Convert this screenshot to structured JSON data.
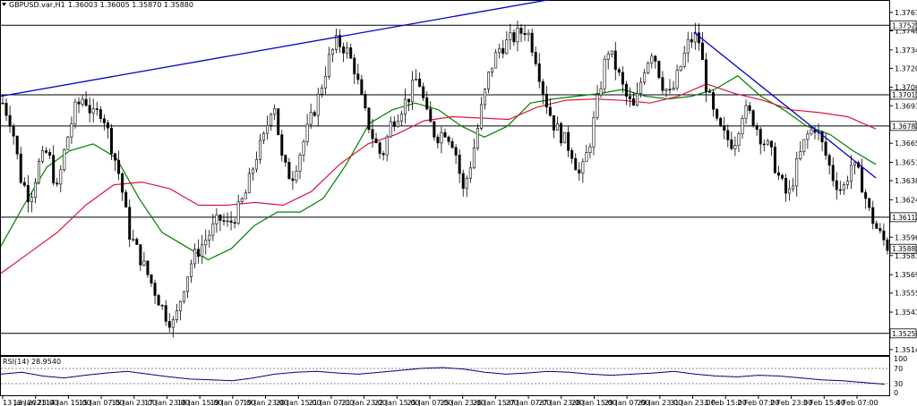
{
  "header": {
    "symbol": "GBPUSD.var,H1",
    "ohlc": "1.36003 1.36005 1.35870 1.35880"
  },
  "rsi": {
    "label": "RSI(14) 28.9540",
    "ticks": [
      "100",
      "70",
      "30",
      "0"
    ]
  },
  "colors": {
    "background": "#ffffff",
    "candle": "#000000",
    "ma_fast": "#008000",
    "ma_slow": "#dc143c",
    "trendline": "#0000cd",
    "level": "#000000",
    "rsi_line": "#000080"
  },
  "chart_data": {
    "type": "line",
    "ylim": [
      1.351,
      1.377
    ],
    "y_ticks": [
      "1.37615",
      "1.37480",
      "1.37340",
      "1.37205",
      "1.37065",
      "1.36930",
      "1.36655",
      "1.36515",
      "1.36380",
      "1.36240",
      "1.35965",
      "1.35830",
      "1.35690",
      "1.35555",
      "1.35415",
      "1.35140"
    ],
    "price_boxes": [
      "1.37521",
      "1.37011",
      "1.36782",
      "1.36112",
      "1.35880",
      "1.35259"
    ],
    "x_ticks": [
      "13 Jan 2021",
      "13 Jan 23:00",
      "14 Jan 15:00",
      "15 Jan 07:00",
      "15 Jan 23:00",
      "17 Jan 23:00",
      "18 Jan 15:00",
      "19 Jan 07:00",
      "19 Jan 23:00",
      "20 Jan 15:00",
      "21 Jan 07:00",
      "21 Jan 23:00",
      "22 Jan 15:00",
      "25 Jan 07:00",
      "25 Jan 23:00",
      "26 Jan 15:00",
      "27 Jan 07:00",
      "27 Jan 23:00",
      "28 Jan 15:00",
      "29 Jan 07:00",
      "29 Jan 23:00",
      "31 Jan 23:00",
      "1 Feb 15:00",
      "2 Feb 07:00",
      "2 Feb 23:00",
      "3 Feb 15:00",
      "4 Feb 07:00"
    ],
    "price_path": [
      1.3695,
      1.368,
      1.364,
      1.3625,
      1.365,
      1.366,
      1.363,
      1.3665,
      1.369,
      1.37,
      1.3685,
      1.369,
      1.3665,
      1.364,
      1.36,
      1.3585,
      1.357,
      1.3555,
      1.354,
      1.3532,
      1.356,
      1.358,
      1.359,
      1.36,
      1.361,
      1.3605,
      1.3615,
      1.363,
      1.3655,
      1.367,
      1.37,
      1.365,
      1.364,
      1.366,
      1.368,
      1.37,
      1.3725,
      1.374,
      1.3735,
      1.372,
      1.369,
      1.367,
      1.3655,
      1.368,
      1.369,
      1.37,
      1.3715,
      1.3685,
      1.367,
      1.3675,
      1.3665,
      1.363,
      1.3655,
      1.369,
      1.372,
      1.3735,
      1.374,
      1.3745,
      1.375,
      1.373,
      1.37,
      1.368,
      1.367,
      1.366,
      1.364,
      1.3665,
      1.37,
      1.3735,
      1.372,
      1.37,
      1.369,
      1.372,
      1.3735,
      1.371,
      1.37,
      1.372,
      1.374,
      1.3745,
      1.3705,
      1.368,
      1.367,
      1.3665,
      1.369,
      1.3685,
      1.367,
      1.366,
      1.364,
      1.3625,
      1.365,
      1.367,
      1.3678,
      1.366,
      1.364,
      1.363,
      1.365,
      1.364,
      1.3615,
      1.36,
      1.359
    ],
    "series": [
      {
        "values": [
          1.359,
          1.362,
          1.3648,
          1.366,
          1.3665,
          1.3655,
          1.3625,
          1.36,
          1.359,
          1.358,
          1.3588,
          1.3605,
          1.3615,
          1.3615,
          1.3625,
          1.365,
          1.368,
          1.369,
          1.3695,
          1.369,
          1.3678,
          1.367,
          1.3678,
          1.3695,
          1.3698,
          1.37,
          1.3702,
          1.3705,
          1.37,
          1.3698,
          1.37,
          1.3705,
          1.3715,
          1.37,
          1.369,
          1.3678,
          1.3672,
          1.366,
          1.365
        ]
      },
      {
        "values": [
          1.357,
          1.3585,
          1.36,
          1.362,
          1.3635,
          1.3637,
          1.3632,
          1.362,
          1.362,
          1.3622,
          1.362,
          1.363,
          1.365,
          1.3665,
          1.3672,
          1.3682,
          1.3685,
          1.3684,
          1.3683,
          1.3692,
          1.3697,
          1.3698,
          1.3697,
          1.3695,
          1.37,
          1.3709,
          1.3702,
          1.3697,
          1.369,
          1.3688,
          1.3685,
          1.3676
        ]
      }
    ],
    "trendlines": [
      {
        "from": [
          0,
          1.37
        ],
        "to": [
          0.74,
          1.3785
        ]
      },
      {
        "from": [
          0.78,
          1.3747
        ],
        "to": [
          0.985,
          1.364
        ]
      }
    ],
    "levels": [
      1.37521,
      1.37011,
      1.36782,
      1.36112,
      1.35259
    ],
    "rsi_values": [
      55,
      60,
      50,
      45,
      52,
      58,
      62,
      55,
      48,
      42,
      40,
      38,
      45,
      55,
      60,
      62,
      58,
      55,
      60,
      65,
      70,
      72,
      68,
      60,
      55,
      58,
      62,
      60,
      55,
      52,
      55,
      58,
      62,
      55,
      50,
      48,
      52,
      50,
      45,
      40,
      38,
      33,
      28.95
    ]
  }
}
